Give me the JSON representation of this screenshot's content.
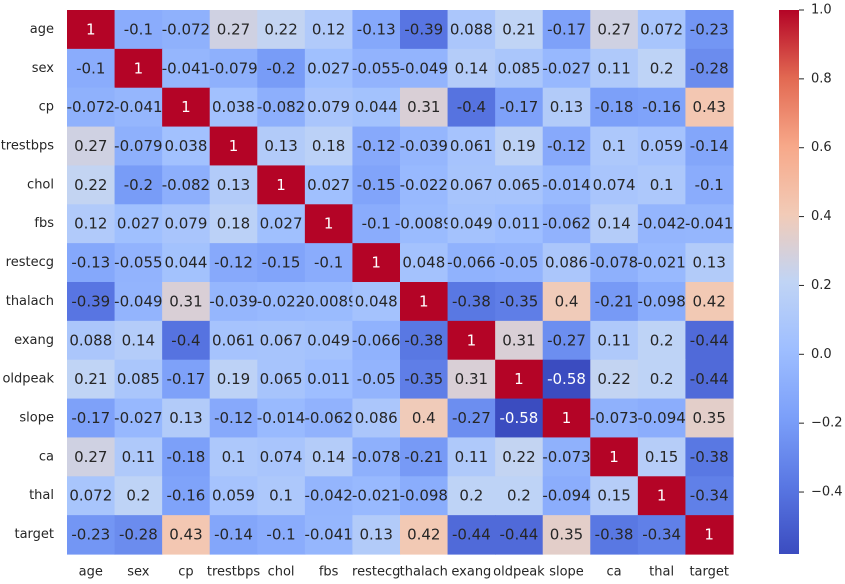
{
  "chart_data": {
    "type": "heatmap",
    "colormap": "coolwarm",
    "rows": [
      "age",
      "sex",
      "cp",
      "trestbps",
      "chol",
      "fbs",
      "restecg",
      "thalach",
      "exang",
      "oldpeak",
      "slope",
      "ca",
      "thal",
      "target"
    ],
    "columns": [
      "age",
      "sex",
      "cp",
      "trestbps",
      "chol",
      "fbs",
      "restecg",
      "thalach",
      "exang",
      "oldpeak",
      "slope",
      "ca",
      "thal",
      "target"
    ],
    "values": [
      [
        1,
        -0.1,
        -0.072,
        0.27,
        0.22,
        0.12,
        -0.13,
        -0.39,
        0.088,
        0.21,
        -0.17,
        0.27,
        0.072,
        -0.23
      ],
      [
        -0.1,
        1,
        -0.041,
        -0.079,
        -0.2,
        0.027,
        -0.055,
        -0.049,
        0.14,
        0.085,
        -0.027,
        0.11,
        0.2,
        -0.28
      ],
      [
        -0.072,
        -0.041,
        1,
        0.038,
        -0.082,
        0.079,
        0.044,
        0.31,
        -0.4,
        -0.17,
        0.13,
        -0.18,
        -0.16,
        0.43
      ],
      [
        0.27,
        -0.079,
        0.038,
        1,
        0.13,
        0.18,
        -0.12,
        -0.039,
        0.061,
        0.19,
        -0.12,
        0.1,
        0.059,
        -0.14
      ],
      [
        0.22,
        -0.2,
        -0.082,
        0.13,
        1,
        0.027,
        -0.15,
        -0.022,
        0.067,
        0.065,
        -0.014,
        0.074,
        0.1,
        -0.1
      ],
      [
        0.12,
        0.027,
        0.079,
        0.18,
        0.027,
        1,
        -0.1,
        -0.0089,
        0.049,
        0.011,
        -0.062,
        0.14,
        -0.042,
        -0.041
      ],
      [
        -0.13,
        -0.055,
        0.044,
        -0.12,
        -0.15,
        -0.1,
        1,
        0.048,
        -0.066,
        -0.05,
        0.086,
        -0.078,
        -0.021,
        0.13
      ],
      [
        -0.39,
        -0.049,
        0.31,
        -0.039,
        -0.022,
        -0.0089,
        0.048,
        1,
        -0.38,
        -0.35,
        0.4,
        -0.21,
        -0.098,
        0.42
      ],
      [
        0.088,
        0.14,
        -0.4,
        0.061,
        0.067,
        0.049,
        -0.066,
        -0.38,
        1,
        0.31,
        -0.27,
        0.11,
        0.2,
        -0.44
      ],
      [
        0.21,
        0.085,
        -0.17,
        0.19,
        0.065,
        0.011,
        -0.05,
        -0.35,
        0.31,
        1,
        -0.58,
        0.22,
        0.2,
        -0.44
      ],
      [
        -0.17,
        -0.027,
        0.13,
        -0.12,
        -0.014,
        -0.062,
        0.086,
        0.4,
        -0.27,
        -0.58,
        1,
        -0.073,
        -0.094,
        0.35
      ],
      [
        0.27,
        0.11,
        -0.18,
        0.1,
        0.074,
        0.14,
        -0.078,
        -0.21,
        0.11,
        0.22,
        -0.073,
        1,
        0.15,
        -0.38
      ],
      [
        0.072,
        0.2,
        -0.16,
        0.059,
        0.1,
        -0.042,
        -0.021,
        -0.098,
        0.2,
        0.2,
        -0.094,
        0.15,
        1,
        -0.34
      ],
      [
        -0.23,
        -0.28,
        0.43,
        -0.14,
        -0.1,
        -0.041,
        0.13,
        0.42,
        -0.44,
        -0.44,
        0.35,
        -0.38,
        -0.34,
        1
      ]
    ],
    "value_labels": [
      [
        "1",
        "-0.1",
        "-0.072",
        "0.27",
        "0.22",
        "0.12",
        "-0.13",
        "-0.39",
        "0.088",
        "0.21",
        "-0.17",
        "0.27",
        "0.072",
        "-0.23"
      ],
      [
        "-0.1",
        "1",
        "-0.041",
        "-0.079",
        "-0.2",
        "0.027",
        "-0.055",
        "-0.049",
        "0.14",
        "0.085",
        "-0.027",
        "0.11",
        "0.2",
        "-0.28"
      ],
      [
        "-0.072",
        "-0.041",
        "1",
        "0.038",
        "-0.082",
        "0.079",
        "0.044",
        "0.31",
        "-0.4",
        "-0.17",
        "0.13",
        "-0.18",
        "-0.16",
        "0.43"
      ],
      [
        "0.27",
        "-0.079",
        "0.038",
        "1",
        "0.13",
        "0.18",
        "-0.12",
        "-0.039",
        "0.061",
        "0.19",
        "-0.12",
        "0.1",
        "0.059",
        "-0.14"
      ],
      [
        "0.22",
        "-0.2",
        "-0.082",
        "0.13",
        "1",
        "0.027",
        "-0.15",
        "-0.022",
        "0.067",
        "0.065",
        "-0.014",
        "0.074",
        "0.1",
        "-0.1"
      ],
      [
        "0.12",
        "0.027",
        "0.079",
        "0.18",
        "0.027",
        "1",
        "-0.1",
        "-0.0089",
        "0.049",
        "0.011",
        "-0.062",
        "0.14",
        "-0.042",
        "-0.041"
      ],
      [
        "-0.13",
        "-0.055",
        "0.044",
        "-0.12",
        "-0.15",
        "-0.1",
        "1",
        "0.048",
        "-0.066",
        "-0.05",
        "0.086",
        "-0.078",
        "-0.021",
        "0.13"
      ],
      [
        "-0.39",
        "-0.049",
        "0.31",
        "-0.039",
        "-0.022",
        "-0.0089",
        "0.048",
        "1",
        "-0.38",
        "-0.35",
        "0.4",
        "-0.21",
        "-0.098",
        "0.42"
      ],
      [
        "0.088",
        "0.14",
        "-0.4",
        "0.061",
        "0.067",
        "0.049",
        "-0.066",
        "-0.38",
        "1",
        "0.31",
        "-0.27",
        "0.11",
        "0.2",
        "-0.44"
      ],
      [
        "0.21",
        "0.085",
        "-0.17",
        "0.19",
        "0.065",
        "0.011",
        "-0.05",
        "-0.35",
        "0.31",
        "1",
        "-0.58",
        "0.22",
        "0.2",
        "-0.44"
      ],
      [
        "-0.17",
        "-0.027",
        "0.13",
        "-0.12",
        "-0.014",
        "-0.062",
        "0.086",
        "0.4",
        "-0.27",
        "-0.58",
        "1",
        "-0.073",
        "-0.094",
        "0.35"
      ],
      [
        "0.27",
        "0.11",
        "-0.18",
        "0.1",
        "0.074",
        "0.14",
        "-0.078",
        "-0.21",
        "0.11",
        "0.22",
        "-0.073",
        "1",
        "0.15",
        "-0.38"
      ],
      [
        "0.072",
        "0.2",
        "-0.16",
        "0.059",
        "0.1",
        "-0.042",
        "-0.021",
        "-0.098",
        "0.2",
        "0.2",
        "-0.094",
        "0.15",
        "1",
        "-0.34"
      ],
      [
        "-0.23",
        "-0.28",
        "0.43",
        "-0.14",
        "-0.1",
        "-0.041",
        "0.13",
        "0.42",
        "-0.44",
        "-0.44",
        "0.35",
        "-0.38",
        "-0.34",
        "1"
      ]
    ],
    "colorbar": {
      "vmin": -0.58,
      "vmax": 1,
      "ticks": [
        1.0,
        0.8,
        0.6,
        0.4,
        0.2,
        0.0,
        -0.2,
        -0.4
      ],
      "tick_labels": [
        "1.0",
        "0.8",
        "0.6",
        "0.4",
        "0.2",
        "0.0",
        "−0.2",
        "−0.4"
      ]
    },
    "grid": false,
    "title": "",
    "xlabel": "",
    "ylabel": ""
  }
}
